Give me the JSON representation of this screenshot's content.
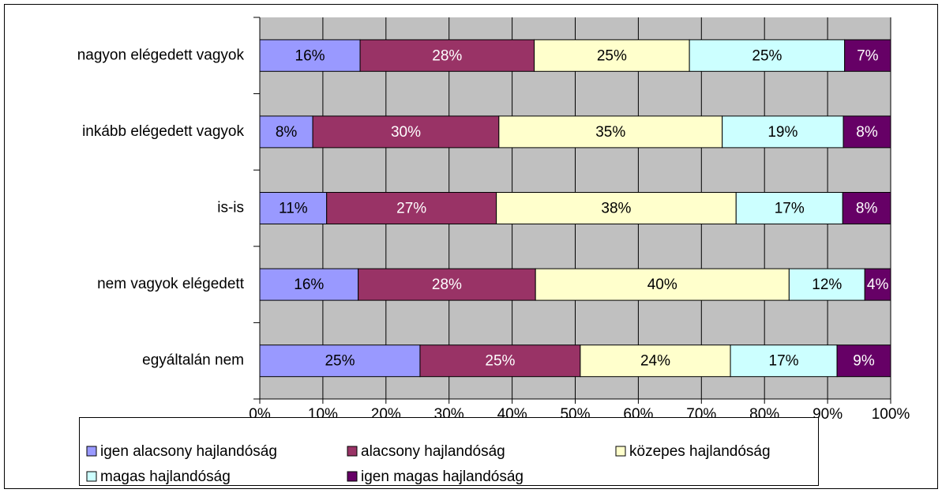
{
  "chart_data": {
    "type": "stacked_barh",
    "categories": [
      "nagyon elégedett vagyok",
      "inkább elégedett vagyok",
      "is-is",
      "nem vagyok elégedett",
      "egyáltalán nem"
    ],
    "series": [
      {
        "name": "igen alacsony hajlandóság",
        "color": "#9999ff",
        "values": [
          15.9,
          8.4,
          10.6,
          15.6,
          25.4
        ],
        "value_labels": [
          "16%",
          "8%",
          "11%",
          "16%",
          "25%"
        ]
      },
      {
        "name": "alacsony hajlandóság",
        "color": "#993366",
        "values": [
          27.6,
          29.5,
          26.9,
          28.1,
          25.4
        ],
        "value_labels": [
          "28%",
          "30%",
          "27%",
          "28%",
          "25%"
        ]
      },
      {
        "name": "közepes hajlandóság",
        "color": "#ffffcc",
        "values": [
          24.6,
          35.4,
          38.0,
          40.2,
          23.8
        ],
        "value_labels": [
          "25%",
          "35%",
          "38%",
          "40%",
          "24%"
        ]
      },
      {
        "name": "magas hajlandóság",
        "color": "#ccffff",
        "values": [
          24.6,
          19.2,
          16.9,
          12.0,
          16.9
        ],
        "value_labels": [
          "25%",
          "19%",
          "17%",
          "12%",
          "17%"
        ]
      },
      {
        "name": "igen magas hajlandóság",
        "color": "#660066",
        "values": [
          7.3,
          7.5,
          7.6,
          4.1,
          8.5
        ],
        "value_labels": [
          "7%",
          "8%",
          "8%",
          "4%",
          "9%"
        ]
      }
    ],
    "xlim": [
      0,
      100
    ],
    "xticks": [
      {
        "value": 0,
        "label": "0%"
      },
      {
        "value": 10,
        "label": "10%"
      },
      {
        "value": 20,
        "label": "20%"
      },
      {
        "value": 30,
        "label": "30%"
      },
      {
        "value": 40,
        "label": "40%"
      },
      {
        "value": 50,
        "label": "50%"
      },
      {
        "value": 60,
        "label": "60%"
      },
      {
        "value": 70,
        "label": "70%"
      },
      {
        "value": 80,
        "label": "80%"
      },
      {
        "value": 90,
        "label": "90%"
      },
      {
        "value": 100,
        "label": "100%"
      }
    ],
    "grid": true,
    "legend": "bottom"
  }
}
